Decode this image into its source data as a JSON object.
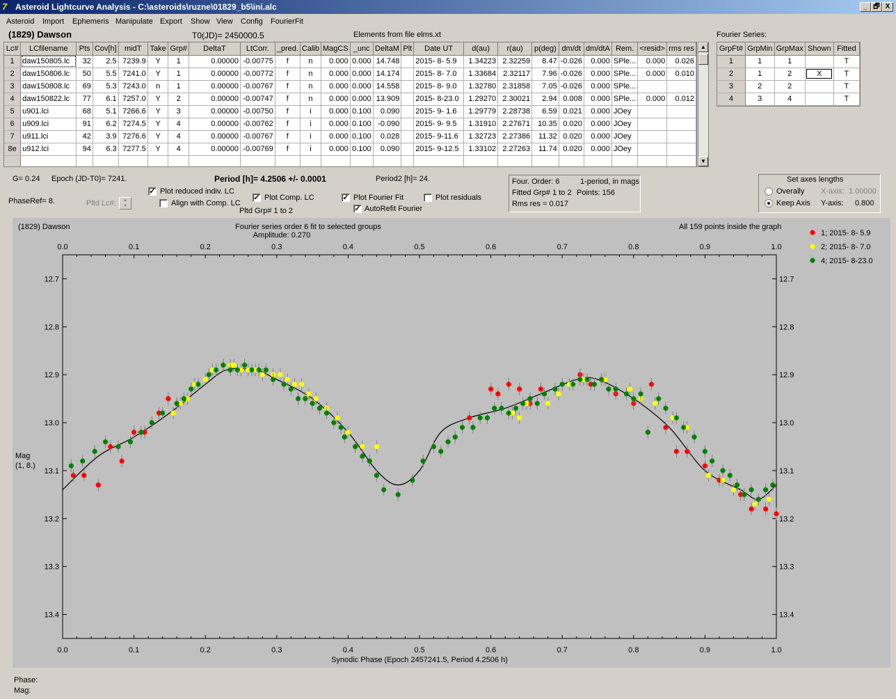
{
  "window": {
    "title": "Asteroid Lightcurve Analysis - C:\\asteroids\\ruzne\\01829_b5\\ini.alc",
    "buttons": [
      "_",
      "🗗",
      "X"
    ]
  },
  "menu": [
    "Asteroid",
    "Import",
    "Ephemeris",
    "Manipulate",
    "Export",
    "Show",
    "View",
    "Config",
    "FourierFit"
  ],
  "header": {
    "asteroid": "(1829) Dawson",
    "t0": "T0(JD)= 2450000.5",
    "elements": "Elements from file elms.xt",
    "fourier_title": "Fourier Series:"
  },
  "lc_table": {
    "columns": [
      "Lc#",
      "LCfilename",
      "Pts",
      "Cov[h]",
      "midT",
      "Take",
      "Grp#",
      "DeltaT",
      "LtCorr.",
      "_pred.",
      "Calib",
      "MagCS",
      "_unc",
      "DeltaM",
      "Plt",
      "Date UT",
      "d(au)",
      "r(au)",
      "p(deg)",
      "dm/dt",
      "dm/dtA",
      "Rem.",
      "<resid>",
      "rms res"
    ],
    "rows": [
      [
        "1",
        "daw150805.lc",
        "32",
        "2.5",
        "7239.9",
        "Y",
        "1",
        "0.00000",
        "-0.00775",
        "f",
        "n",
        "0.000",
        "0.000",
        "14.748",
        "",
        "2015- 8- 5.9",
        "1.34223",
        "2.32259",
        "8.47",
        "-0.026",
        "0.000",
        "SPle...",
        "0.000",
        "0.026"
      ],
      [
        "2",
        "daw150806.lc",
        "50",
        "5.5",
        "7241.0",
        "Y",
        "1",
        "0.00000",
        "-0.00772",
        "f",
        "n",
        "0.000",
        "0.000",
        "14.174",
        "",
        "2015- 8- 7.0",
        "1.33684",
        "2.32117",
        "7.96",
        "-0.026",
        "0.000",
        "SPle...",
        "0.000",
        "0.010"
      ],
      [
        "3",
        "daw150808.lc",
        "69",
        "5.3",
        "7243.0",
        "n",
        "1",
        "0.00000",
        "-0.00767",
        "f",
        "n",
        "0.000",
        "0.000",
        "14.558",
        "",
        "2015- 8- 9.0",
        "1.32780",
        "2.31858",
        "7.05",
        "-0.026",
        "0.000",
        "SPle...",
        "",
        ""
      ],
      [
        "4",
        "daw150822.lc",
        "77",
        "6.1",
        "7257.0",
        "Y",
        "2",
        "0.00000",
        "-0.00747",
        "f",
        "n",
        "0.000",
        "0.000",
        "13.909",
        "",
        "2015- 8-23.0",
        "1.29270",
        "2.30021",
        "2.94",
        "0.008",
        "0.000",
        "SPle...",
        "0.000",
        "0.012"
      ],
      [
        "5",
        "u901.lci",
        "68",
        "5.1",
        "7266.6",
        "Y",
        "3",
        "0.00000",
        "-0.00750",
        "f",
        "i",
        "0.000",
        "0.100",
        "0.090",
        "",
        "2015- 9- 1.6",
        "1.29779",
        "2.28738",
        "6.59",
        "0.021",
        "0.000",
        "JOey",
        "",
        ""
      ],
      [
        "6",
        "u909.lci",
        "91",
        "6.2",
        "7274.5",
        "Y",
        "4",
        "0.00000",
        "-0.00762",
        "f",
        "i",
        "0.000",
        "0.100",
        "-0.090",
        "",
        "2015- 9- 9.5",
        "1.31910",
        "2.27671",
        "10.35",
        "0.020",
        "0.000",
        "JOey",
        "",
        ""
      ],
      [
        "7",
        "u911.lci",
        "42",
        "3.9",
        "7276.6",
        "Y",
        "4",
        "0.00000",
        "-0.00767",
        "f",
        "i",
        "0.000",
        "0.100",
        "0.028",
        "",
        "2015- 9-11.6",
        "1.32723",
        "2.27386",
        "11.32",
        "0.020",
        "0.000",
        "JOey",
        "",
        ""
      ],
      [
        "8e",
        "u912.lci",
        "94",
        "6.3",
        "7277.5",
        "Y",
        "4",
        "0.00000",
        "-0.00769",
        "f",
        "i",
        "0.000",
        "0.100",
        "0.090",
        "",
        "2015- 9-12.5",
        "1.33102",
        "2.27263",
        "11.74",
        "0.020",
        "0.000",
        "JOey",
        "",
        ""
      ],
      [
        "",
        "",
        "",
        "",
        "",
        "",
        "",
        "",
        "",
        "",
        "",
        "",
        "",
        "",
        "",
        "",
        "",
        "",
        "",
        "",
        "",
        "",
        "",
        ""
      ]
    ]
  },
  "fourier_table": {
    "columns": [
      "GrpFt#",
      "GrpMin",
      "GrpMax",
      "Shown",
      "Fitted"
    ],
    "rows": [
      [
        "1",
        "1",
        "1",
        "",
        "T"
      ],
      [
        "2",
        "1",
        "2",
        "X",
        "T"
      ],
      [
        "3",
        "2",
        "2",
        "",
        "T"
      ],
      [
        "4",
        "3",
        "4",
        "",
        "T"
      ]
    ]
  },
  "controls": {
    "g": "G= 0.24",
    "epoch": "Epoch (JD-T0)= 7241.",
    "period": "Period [h]= 4.2506 +/- 0.0001",
    "period2": "Period2 [h]= 24.",
    "phaseref": "PhaseRef= 8.",
    "pltd_lc": "Pltd Lc#:",
    "plot_reduced": "Plot reduced indiv. LC",
    "align_comp": "Align with Comp. LC",
    "plot_comp": "Plot Comp. LC",
    "pltd_grp": "Pltd Grp#  1   to   2",
    "plot_fourier": "Plot Fourier Fit",
    "autorefit": "AutoRefit Fourier",
    "plot_residuals": "Plot residuals",
    "checks": {
      "plot_reduced": true,
      "align_comp": false,
      "plot_comp": true,
      "plot_fourier": true,
      "autorefit": true,
      "plot_residuals": false
    },
    "fit_info": {
      "order": "Four. Order:  6",
      "mode": "1-period, in mags",
      "fitted": "Fitted Grp# 1 to 2",
      "points": "Points: 156",
      "rms": "Rms res     = 0.017"
    },
    "axes": {
      "title": "Set axes lengths",
      "overally": "Overally",
      "keep": "Keep Axis",
      "x_label": "X-axis:",
      "x_val": "1.00000",
      "y_label": "Y-axis:",
      "y_val": "0.800",
      "selected": "keep"
    }
  },
  "graph": {
    "left_title": "(1829) Dawson",
    "center_title": "Fourier series order 6 fit to selected groups",
    "amplitude": "Amplitude: 0.270",
    "right_title": "All 159 points inside the graph",
    "y_label_1": "Mag",
    "y_label_2": "(1, 8.)",
    "x_label": "Synodic Phase (Epoch 2457241.5, Period 4.2506 h)",
    "legend": [
      {
        "label": "1; 2015- 8- 5.9",
        "color": "#ff0000"
      },
      {
        "label": "2; 2015- 8- 7.0",
        "color": "#ffff00"
      },
      {
        "label": "4; 2015- 8-23.0",
        "color": "#008000"
      }
    ]
  },
  "chart_data": {
    "type": "scatter",
    "xlim": [
      0.0,
      1.0
    ],
    "ylim": [
      13.45,
      12.65
    ],
    "y_inverted": true,
    "x_ticks": [
      "0.0",
      "0.1",
      "0.2",
      "0.3",
      "0.4",
      "0.5",
      "0.6",
      "0.7",
      "0.8",
      "0.9",
      "1.0"
    ],
    "y_ticks": [
      "12.7",
      "12.8",
      "12.9",
      "13.0",
      "13.1",
      "13.2",
      "13.3",
      "13.4"
    ],
    "fit_curve": {
      "x": [
        0.0,
        0.05,
        0.1,
        0.15,
        0.2,
        0.23,
        0.27,
        0.3,
        0.35,
        0.4,
        0.44,
        0.47,
        0.5,
        0.53,
        0.57,
        0.62,
        0.67,
        0.72,
        0.75,
        0.8,
        0.85,
        0.9,
        0.95,
        0.975,
        1.0
      ],
      "y": [
        13.14,
        13.07,
        13.03,
        12.98,
        12.92,
        12.89,
        12.89,
        12.91,
        12.95,
        13.02,
        13.1,
        13.13,
        13.1,
        13.02,
        12.99,
        12.97,
        12.94,
        12.91,
        12.91,
        12.95,
        13.01,
        13.1,
        13.14,
        13.16,
        13.13
      ]
    },
    "series": [
      {
        "name": "1; 2015- 8- 5.9",
        "color": "#ff0000",
        "x": [
          0.015,
          0.03,
          0.05,
          0.067,
          0.083,
          0.1,
          0.115,
          0.135,
          0.148,
          0.16,
          0.57,
          0.6,
          0.61,
          0.625,
          0.64,
          0.655,
          0.67,
          0.725,
          0.74,
          0.755,
          0.775,
          0.8,
          0.825,
          0.845,
          0.86,
          0.875,
          0.9,
          0.92,
          0.95,
          0.965,
          0.985,
          1.0
        ],
        "y": [
          13.11,
          13.11,
          13.13,
          13.05,
          13.08,
          13.02,
          13.02,
          12.98,
          12.95,
          12.96,
          12.99,
          12.93,
          12.94,
          12.92,
          12.93,
          12.96,
          12.93,
          12.9,
          12.92,
          12.91,
          12.94,
          12.96,
          12.92,
          13.01,
          13.06,
          13.06,
          13.09,
          13.12,
          13.15,
          13.18,
          13.18,
          13.19
        ]
      },
      {
        "name": "2; 2015- 8- 7.0",
        "color": "#ffff00",
        "x": [
          0.155,
          0.165,
          0.175,
          0.185,
          0.2,
          0.21,
          0.225,
          0.235,
          0.24,
          0.25,
          0.26,
          0.27,
          0.28,
          0.295,
          0.305,
          0.315,
          0.325,
          0.335,
          0.345,
          0.355,
          0.37,
          0.385,
          0.4,
          0.42,
          0.44,
          0.63,
          0.64,
          0.65,
          0.68,
          0.695,
          0.71,
          0.73,
          0.76,
          0.795,
          0.81,
          0.83,
          0.855,
          0.875,
          0.905,
          0.925,
          0.94,
          0.955,
          0.97,
          0.99
        ],
        "y": [
          12.98,
          12.96,
          12.95,
          12.92,
          12.91,
          12.89,
          12.88,
          12.88,
          12.88,
          12.89,
          12.89,
          12.89,
          12.9,
          12.9,
          12.9,
          12.91,
          12.92,
          12.92,
          12.94,
          12.95,
          12.97,
          12.99,
          13.02,
          13.05,
          13.05,
          12.98,
          12.99,
          12.96,
          12.96,
          12.94,
          12.92,
          12.91,
          12.91,
          12.93,
          12.95,
          12.96,
          12.99,
          13.01,
          13.11,
          13.12,
          13.14,
          13.15,
          13.17,
          13.16
        ]
      },
      {
        "name": "4; 2015- 8-23.0",
        "color": "#008000",
        "x": [
          0.012,
          0.028,
          0.045,
          0.06,
          0.078,
          0.095,
          0.11,
          0.125,
          0.14,
          0.16,
          0.17,
          0.18,
          0.19,
          0.205,
          0.215,
          0.225,
          0.235,
          0.245,
          0.255,
          0.265,
          0.275,
          0.285,
          0.295,
          0.31,
          0.32,
          0.33,
          0.34,
          0.35,
          0.36,
          0.37,
          0.38,
          0.39,
          0.395,
          0.41,
          0.42,
          0.43,
          0.44,
          0.45,
          0.47,
          0.49,
          0.505,
          0.52,
          0.53,
          0.54,
          0.55,
          0.56,
          0.575,
          0.585,
          0.595,
          0.605,
          0.615,
          0.625,
          0.635,
          0.645,
          0.655,
          0.665,
          0.675,
          0.69,
          0.7,
          0.715,
          0.725,
          0.735,
          0.745,
          0.755,
          0.765,
          0.775,
          0.79,
          0.8,
          0.81,
          0.82,
          0.835,
          0.845,
          0.86,
          0.87,
          0.885,
          0.9,
          0.91,
          0.925,
          0.935,
          0.945,
          0.955,
          0.965,
          0.975,
          0.985,
          0.995
        ],
        "y": [
          13.09,
          13.08,
          13.06,
          13.04,
          13.05,
          13.04,
          13.02,
          13.0,
          12.98,
          12.96,
          12.95,
          12.93,
          12.92,
          12.9,
          12.89,
          12.88,
          12.89,
          12.89,
          12.88,
          12.89,
          12.89,
          12.89,
          12.91,
          12.92,
          12.93,
          12.95,
          12.95,
          12.96,
          12.97,
          12.98,
          13.0,
          13.01,
          13.03,
          13.05,
          13.07,
          13.08,
          13.11,
          13.14,
          13.15,
          13.12,
          13.08,
          13.05,
          13.06,
          13.04,
          13.03,
          13.01,
          13.01,
          12.99,
          12.99,
          12.97,
          12.97,
          12.98,
          12.97,
          12.96,
          12.95,
          12.96,
          12.94,
          12.93,
          12.92,
          12.92,
          12.91,
          12.91,
          12.92,
          12.91,
          12.93,
          12.93,
          12.94,
          12.95,
          12.94,
          13.02,
          12.95,
          12.97,
          12.99,
          13.01,
          13.03,
          13.06,
          13.08,
          13.1,
          13.11,
          13.13,
          13.15,
          13.14,
          13.16,
          13.14,
          13.13
        ]
      }
    ]
  },
  "status": {
    "phase": "Phase:",
    "mag": "Mag:"
  }
}
